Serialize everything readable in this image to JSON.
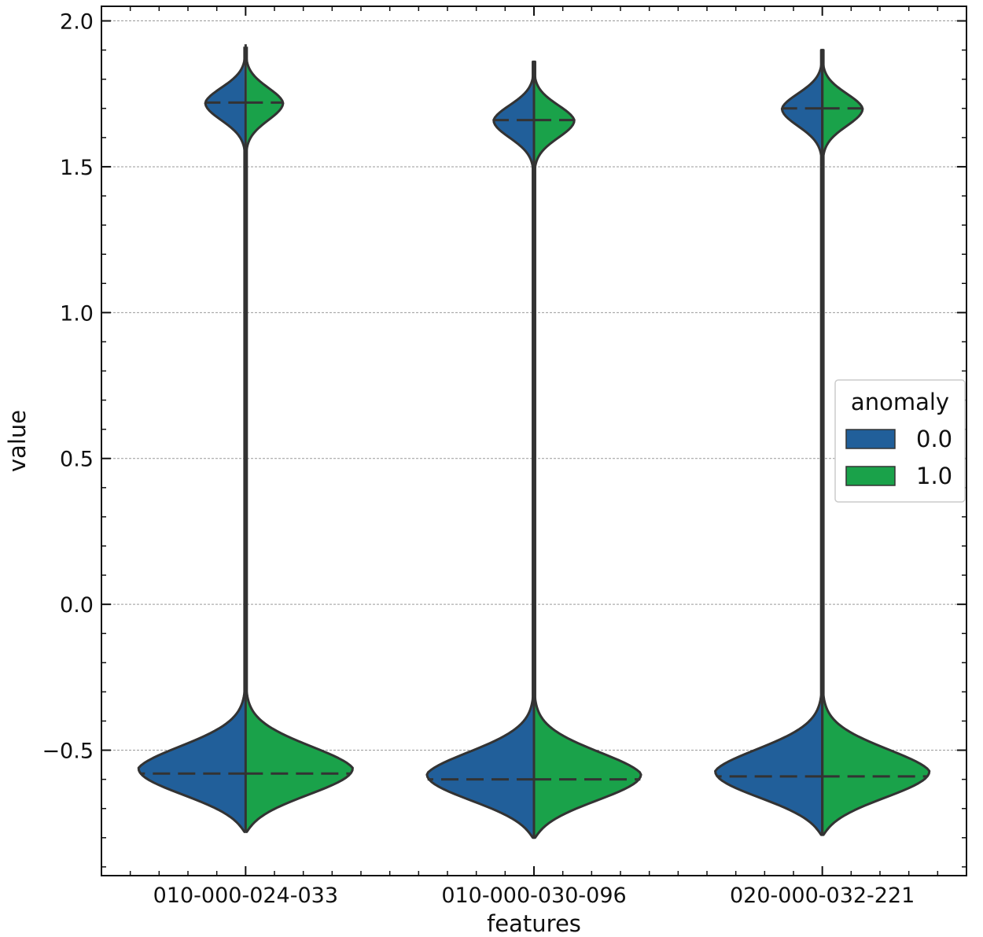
{
  "chart_data": {
    "type": "violin",
    "xlabel": "features",
    "ylabel": "value",
    "ylim": [
      -0.93,
      2.05
    ],
    "yticks": [
      -0.5,
      0.0,
      0.5,
      1.0,
      1.5,
      2.0
    ],
    "ytick_labels": [
      "−0.5",
      "0.0",
      "0.5",
      "1.0",
      "1.5",
      "2.0"
    ],
    "grid": "horizontal dashed",
    "legend": {
      "title": "anomaly",
      "placement": "center-right",
      "entries": [
        {
          "label": "0.0",
          "color": "#215f9a"
        },
        {
          "label": "1.0",
          "color": "#1aa24a"
        }
      ]
    },
    "categories": [
      "010-000-024-033",
      "010-000-030-096",
      "020-000-032-221"
    ],
    "split": true,
    "series": [
      {
        "name": "0.0",
        "side": "left",
        "color": "#215f9a",
        "violins": [
          {
            "min": -0.78,
            "max": 1.92,
            "median_low": -0.58,
            "median_high": 1.72,
            "low_peak_y": -0.58,
            "low_peak_halfwidth": 0.38,
            "high_peak_y": 1.72,
            "high_peak_halfwidth": 0.14
          },
          {
            "min": -0.8,
            "max": 1.86,
            "median_low": -0.6,
            "median_high": 1.66,
            "low_peak_y": -0.6,
            "low_peak_halfwidth": 0.38,
            "high_peak_y": 1.66,
            "high_peak_halfwidth": 0.14
          },
          {
            "min": -0.79,
            "max": 1.9,
            "median_low": -0.59,
            "median_high": 1.7,
            "low_peak_y": -0.59,
            "low_peak_halfwidth": 0.38,
            "high_peak_y": 1.7,
            "high_peak_halfwidth": 0.14
          }
        ]
      },
      {
        "name": "1.0",
        "side": "right",
        "color": "#1aa24a",
        "violins": [
          {
            "min": -0.78,
            "max": 1.92,
            "median_low": -0.58,
            "median_high": 1.72,
            "low_peak_y": -0.58,
            "low_peak_halfwidth": 0.38,
            "high_peak_y": 1.72,
            "high_peak_halfwidth": 0.13
          },
          {
            "min": -0.8,
            "max": 1.86,
            "median_low": -0.6,
            "median_high": 1.66,
            "low_peak_y": -0.6,
            "low_peak_halfwidth": 0.38,
            "high_peak_y": 1.66,
            "high_peak_halfwidth": 0.14
          },
          {
            "min": -0.79,
            "max": 1.9,
            "median_low": -0.59,
            "median_high": 1.7,
            "low_peak_y": -0.59,
            "low_peak_halfwidth": 0.38,
            "high_peak_y": 1.7,
            "high_peak_halfwidth": 0.14
          }
        ]
      }
    ]
  }
}
